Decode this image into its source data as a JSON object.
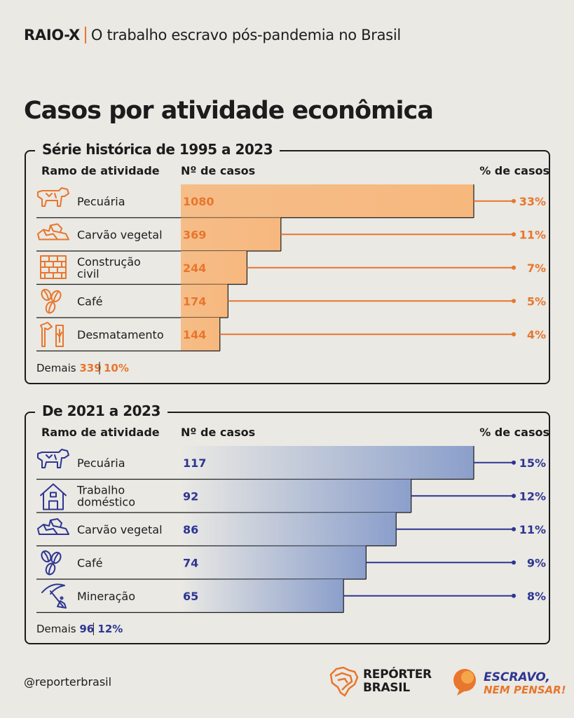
{
  "header": {
    "kicker": "RAIO-X",
    "subtitle": "O trabalho escravo pós-pandemia no Brasil"
  },
  "title": "Casos por atividade econômica",
  "colors": {
    "orange": "#e8762d",
    "blue": "#2e3592",
    "bar_orange": "#f7b87e",
    "bar_blue": "#8b9fcb"
  },
  "chart_data": [
    {
      "type": "bar",
      "title": "Série histórica de 1995 a 2023",
      "column_headers": [
        "Ramo de atividade",
        "Nº de casos",
        "% de casos"
      ],
      "categories": [
        [
          "Pecuária"
        ],
        [
          "Carvão vegetal"
        ],
        [
          "Construção",
          "civil"
        ],
        [
          "Café"
        ],
        [
          "Desmatamento"
        ]
      ],
      "icons": [
        "cow-icon",
        "coal-icon",
        "brick-wall-icon",
        "coffee-beans-icon",
        "axe-tree-icon"
      ],
      "values": [
        1080,
        369,
        244,
        174,
        144
      ],
      "value_labels": [
        "1080",
        "369",
        "244",
        "174",
        "144"
      ],
      "percent_labels": [
        "33%",
        "11%",
        "7%",
        "5%",
        "4%"
      ],
      "others": {
        "label": "Demais",
        "value": "339",
        "percent": "10%"
      },
      "color": "orange"
    },
    {
      "type": "bar",
      "title": "De 2021 a 2023",
      "column_headers": [
        "Ramo de atividade",
        "Nº de casos",
        "% de casos"
      ],
      "categories": [
        [
          "Pecuária"
        ],
        [
          "Trabalho",
          "doméstico"
        ],
        [
          "Carvão vegetal"
        ],
        [
          "Café"
        ],
        [
          "Mineração"
        ]
      ],
      "icons": [
        "cow-icon",
        "house-icon",
        "coal-icon",
        "coffee-beans-icon",
        "pickaxe-icon"
      ],
      "values": [
        117,
        92,
        86,
        74,
        65
      ],
      "value_labels": [
        "117",
        "92",
        "86",
        "74",
        "65"
      ],
      "percent_labels": [
        "15%",
        "12%",
        "11%",
        "9%",
        "8%"
      ],
      "others": {
        "label": "Demais",
        "value": "96",
        "percent": "12%"
      },
      "color": "blue"
    }
  ],
  "footer": {
    "handle": "@reporterbrasil",
    "logo1": [
      "REPÓRTER",
      "BRASIL"
    ],
    "logo2": [
      "ESCRAVO,",
      "NEM PENSAR!"
    ]
  }
}
